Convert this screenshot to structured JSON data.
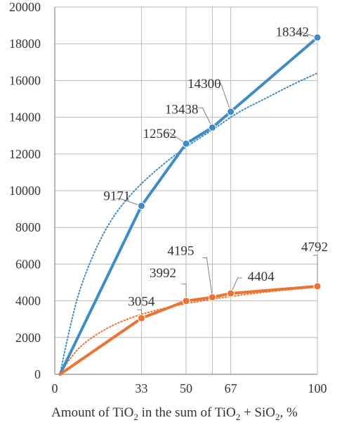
{
  "colors": {
    "blue": "#3d8cc7",
    "orange": "#ec7333",
    "grid": "#b8b8b8",
    "axis": "#8c8c8c",
    "text": "#333333",
    "leader": "#808080"
  },
  "chart_data": {
    "type": "line",
    "xlabel": {
      "p1": "Amount of TiO",
      "s1": "2",
      "p2": " in the sum of TiO",
      "s2": "2",
      "p3": " + SiO",
      "s3": "2",
      "p4": ", %"
    },
    "ylabel": "",
    "xlim": [
      0,
      100
    ],
    "ylim": [
      0,
      20000
    ],
    "y_ticks": [
      0,
      2000,
      4000,
      6000,
      8000,
      10000,
      12000,
      14000,
      16000,
      18000,
      20000
    ],
    "x_ticks": [
      0,
      33,
      50,
      67,
      100
    ],
    "vertical_gridlines_x": [
      33,
      50,
      60,
      67,
      100
    ],
    "horizontal_grid": true,
    "legend": "none",
    "series": [
      {
        "color": "#3d8cc7",
        "style": "solid",
        "points": [
          [
            2,
            0
          ],
          [
            33,
            9171
          ],
          [
            50,
            12562
          ],
          [
            60,
            13438
          ],
          [
            67,
            14300
          ],
          [
            100,
            18342
          ]
        ],
        "labels": [
          "9171",
          "12562",
          "13438",
          "14300",
          "18342"
        ]
      },
      {
        "color": "#ec7333",
        "style": "solid",
        "points": [
          [
            2,
            0
          ],
          [
            33,
            3054
          ],
          [
            50,
            3992
          ],
          [
            60,
            4195
          ],
          [
            67,
            4404
          ],
          [
            100,
            4792
          ]
        ],
        "labels": [
          "3054",
          "3992",
          "4195",
          "4404",
          "4792"
        ]
      }
    ],
    "trendlines": [
      {
        "color": "#3d8cc7",
        "style": "dotted",
        "points": [
          [
            2,
            0
          ],
          [
            5,
            2100
          ],
          [
            10,
            5000
          ],
          [
            20,
            8200
          ],
          [
            30,
            10000
          ],
          [
            40,
            11300
          ],
          [
            50,
            12400
          ],
          [
            60,
            13300
          ],
          [
            70,
            14300
          ],
          [
            80,
            15000
          ],
          [
            90,
            15750
          ],
          [
            100,
            16400
          ]
        ]
      },
      {
        "color": "#ec7333",
        "style": "dotted",
        "points": [
          [
            2,
            0
          ],
          [
            5,
            700
          ],
          [
            10,
            1600
          ],
          [
            20,
            2550
          ],
          [
            30,
            3150
          ],
          [
            40,
            3550
          ],
          [
            50,
            3850
          ],
          [
            60,
            4100
          ],
          [
            70,
            4300
          ],
          [
            80,
            4480
          ],
          [
            90,
            4620
          ],
          [
            100,
            4750
          ]
        ]
      }
    ]
  }
}
